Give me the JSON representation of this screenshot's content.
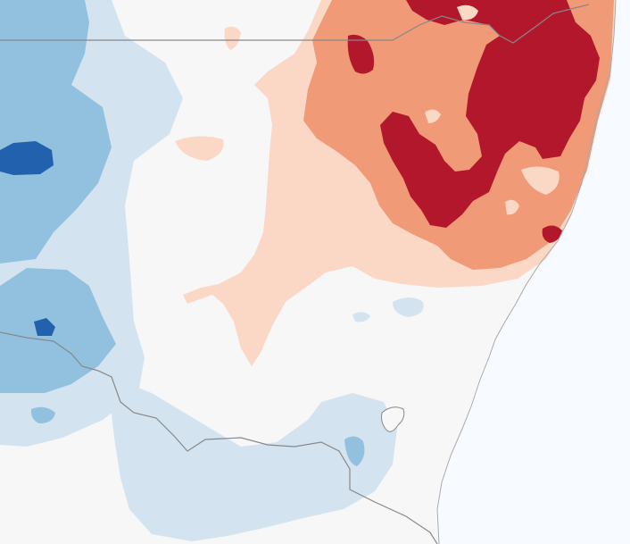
{
  "map": {
    "colors": {
      "ocean": "#f7faff",
      "land_neutral": "#f7f7f7",
      "blue_1": "#d3e4f0",
      "blue_2": "#92c1df",
      "blue_3": "#5a9bcd",
      "blue_4": "#2261ad",
      "red_1": "#fbd8c6",
      "red_2": "#f09a77",
      "red_3": "#ef8961",
      "red_4": "#b3172b",
      "border": "#888888",
      "coast": "#aaaaaa"
    }
  }
}
